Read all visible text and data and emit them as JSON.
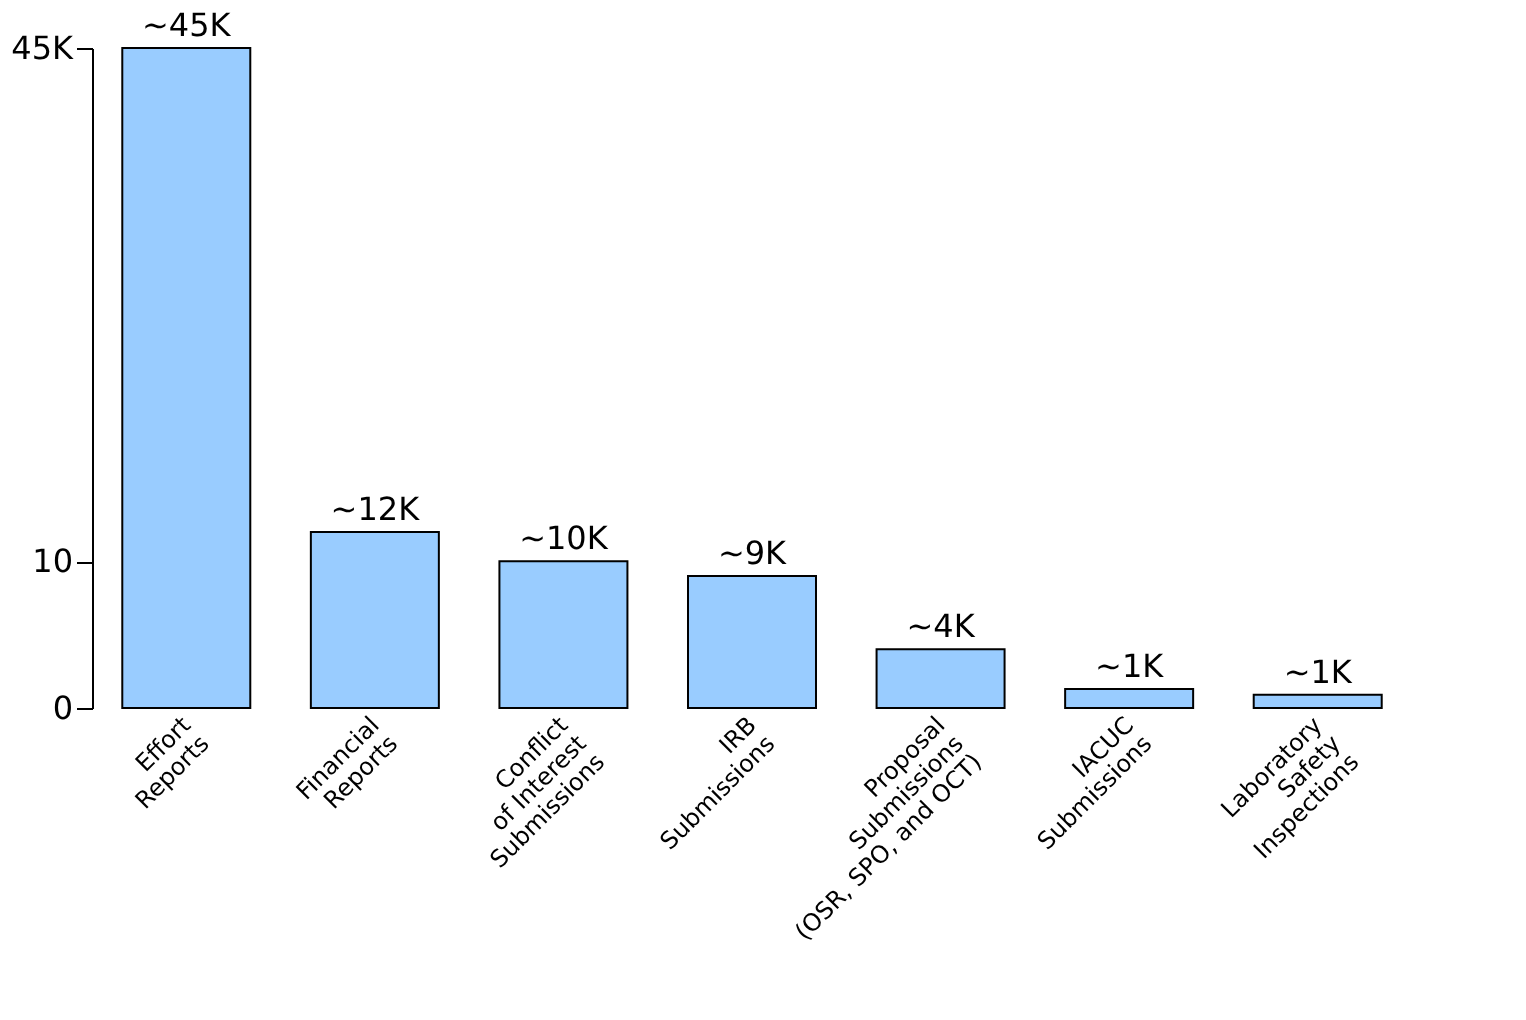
{
  "chart_data": {
    "type": "bar",
    "categories": [
      "Effort\nReports",
      "Financial\nReports",
      "Conflict\nof Interest\nSubmissions",
      "IRB\nSubmissions",
      "Proposal\nSubmissions\n(OSR, SPO, and OCT)",
      "IACUC\nSubmissions",
      "Laboratory\nSafety\nInspections"
    ],
    "values": [
      45,
      12,
      10,
      9,
      4,
      1.3,
      0.9
    ],
    "value_labels": [
      "~45K",
      "~12K",
      "~10K",
      "~9K",
      "~4K",
      "~1K",
      "~1K"
    ],
    "color": "#99ccff",
    "ylim": [
      0,
      45
    ],
    "yticks": [
      0,
      10,
      {
        "value": 45,
        "label": "45K"
      }
    ],
    "grid": false
  }
}
